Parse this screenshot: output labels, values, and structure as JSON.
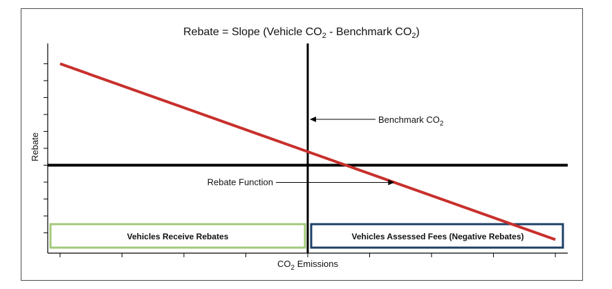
{
  "chart_data": {
    "type": "line",
    "title": {
      "prefix": "Rebate = Slope (Vehicle CO",
      "sub1": "2",
      "middle": " - Benchmark CO",
      "sub2": "2",
      "suffix": ")"
    },
    "xlabel": {
      "prefix": "CO",
      "sub": "2",
      "suffix": " Emissions"
    },
    "ylabel": "Rebate",
    "x": [
      1,
      9
    ],
    "series": [
      {
        "values": [
          3,
          -2.2
        ]
      }
    ],
    "benchmark_x": 5,
    "xlim": [
      0.8,
      9.2
    ],
    "ylim": [
      -2.6,
      3.6
    ],
    "x_ticks": [
      1,
      2,
      3,
      4,
      5,
      6,
      7,
      8,
      9
    ],
    "y_ticks": [
      -2,
      -1.5,
      -1,
      -0.5,
      0,
      0.5,
      1,
      1.5,
      2,
      2.5,
      3
    ],
    "grid": false,
    "annotations": {
      "benchmark": {
        "prefix": "Benchmark CO",
        "sub": "2"
      },
      "rebate_function": "Rebate Function"
    },
    "regions": {
      "rebates": "Vehicles Receive Rebates",
      "fees": "Vehicles Assessed Fees (Negative Rebates)"
    },
    "colors": {
      "line": "#c8302c",
      "axes": "#000000",
      "rebate_box": "#a3c97a",
      "rebate_text": "#3e8e2c",
      "fee_box": "#1e3f66",
      "fee_text": "#1e3f66"
    }
  }
}
